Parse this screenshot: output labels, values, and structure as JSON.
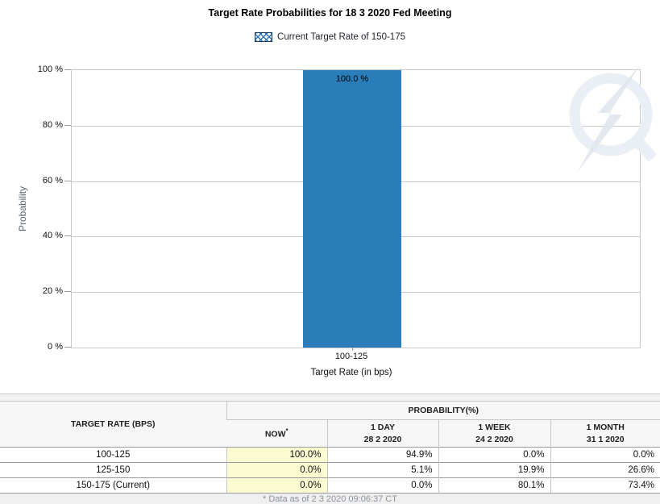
{
  "header": {
    "title": "Target Rate Probabilities for 18 3 2020 Fed Meeting",
    "legend_label": "Current Target Rate of 150-175"
  },
  "chart_data": {
    "type": "bar",
    "title": "Target Rate Probabilities for 18 3 2020 Fed Meeting",
    "categories": [
      "100-125"
    ],
    "values": [
      100.0
    ],
    "bar_labels": [
      "100.0 %"
    ],
    "xlabel": "Target Rate (in bps)",
    "ylabel": "Probability",
    "ylim": [
      0,
      100
    ],
    "yticks": [
      "100 %",
      "80 %",
      "60 %",
      "40 %",
      "20 %",
      "0 %"
    ],
    "grid": true,
    "legend_position": "top",
    "legend_entries": [
      "Current Target Rate of 150-175"
    ],
    "bar_color": "#2A7DB8"
  },
  "icons": {
    "legend_swatch": "crosshatch-swatch",
    "watermark": "q-lightning-logo"
  },
  "colors": {
    "bar": "#2A7DB8",
    "legend_swatch_border": "#17375E",
    "legend_swatch_hatch": "#2E74B5",
    "highlight_yellow": "#FBFBD2",
    "grid": "#C9C9C9",
    "header_bg": "#F6F6F6",
    "watermark_ring": "#E9EFF5",
    "watermark_bolt": "#DFE5EC"
  },
  "table": {
    "col1_header": "TARGET RATE (BPS)",
    "group_header": "PROBABILITY(%)",
    "columns": [
      {
        "label": "NOW",
        "sup": "*"
      },
      {
        "label": "1 DAY",
        "date": "28 2 2020"
      },
      {
        "label": "1 WEEK",
        "date": "24 2 2020"
      },
      {
        "label": "1 MONTH",
        "date": "31 1 2020"
      }
    ],
    "rows": [
      {
        "rate": "100-125",
        "now": "100.0%",
        "day": "94.9%",
        "week": "0.0%",
        "month": "0.0%"
      },
      {
        "rate": "125-150",
        "now": "0.0%",
        "day": "5.1%",
        "week": "19.9%",
        "month": "26.6%"
      },
      {
        "rate": "150-175 (Current)",
        "now": "0.0%",
        "day": "0.0%",
        "week": "80.1%",
        "month": "73.4%"
      }
    ],
    "footnote": "* Data as of 2 3 2020 09:06:37 CT",
    "highlight_color": "#FBFBD2"
  }
}
